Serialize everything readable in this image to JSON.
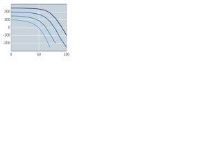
{
  "chart_data": {
    "type": "line",
    "x": [
      0,
      10,
      20,
      30,
      40,
      50,
      60,
      70,
      80,
      90,
      100
    ],
    "series": [
      {
        "color": "#1f3f7a",
        "values": [
          250,
          250,
          249,
          247,
          244,
          238,
          225,
          190,
          120,
          20,
          -100
        ]
      },
      {
        "color": "#2a6fb0",
        "values": [
          200,
          199,
          197,
          193,
          185,
          170,
          140,
          80,
          -20,
          -150,
          -250
        ]
      },
      {
        "color": "#3d8fd0",
        "values": [
          150,
          148,
          144,
          136,
          120,
          90,
          30,
          -80,
          -200,
          null,
          null
        ]
      },
      {
        "color": "#5aaee0",
        "values": [
          100,
          97,
          90,
          76,
          50,
          0,
          -100,
          -250,
          null,
          null,
          null
        ]
      }
    ],
    "xlim": [
      0,
      100
    ],
    "xticks": [
      0,
      50,
      100
    ],
    "ylim": [
      -300,
      300
    ],
    "yticks": [
      -200,
      -100,
      0,
      100,
      200
    ],
    "grid": true
  }
}
